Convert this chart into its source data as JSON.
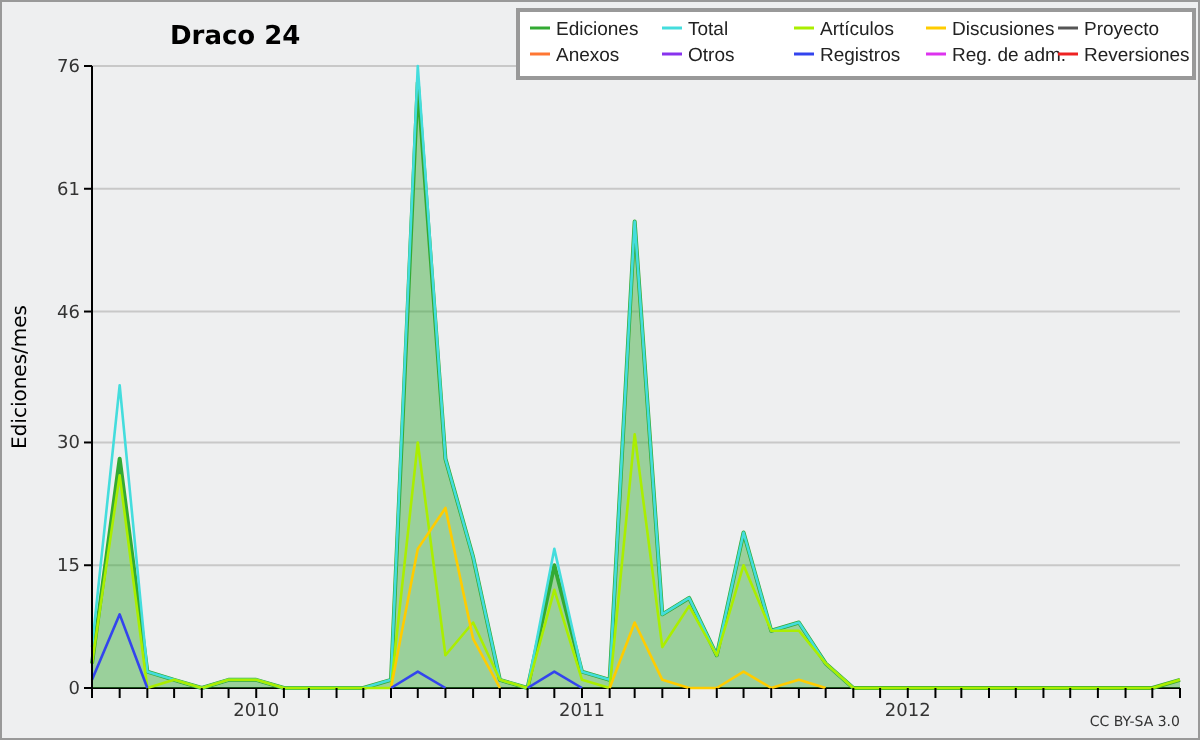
{
  "chart_data": {
    "type": "line",
    "title": "Draco 24",
    "ylabel": "Ediciones/mes",
    "annotations": [
      "CC BY-SA 3.0"
    ],
    "x": [
      "2009-07",
      "2009-08",
      "2009-09",
      "2009-10",
      "2009-11",
      "2009-12",
      "2010-01",
      "2010-02",
      "2010-03",
      "2010-04",
      "2010-05",
      "2010-06",
      "2010-07",
      "2010-08",
      "2010-09",
      "2010-10",
      "2010-11",
      "2010-12",
      "2011-01",
      "2011-02",
      "2011-03",
      "2011-04",
      "2011-05",
      "2011-06",
      "2011-07",
      "2011-08",
      "2011-09",
      "2011-10",
      "2011-11",
      "2011-12",
      "2012-01",
      "2012-02",
      "2012-03",
      "2012-04",
      "2012-05",
      "2012-06",
      "2012-07",
      "2012-08",
      "2012-09",
      "2012-10",
      "2012-11"
    ],
    "series": [
      {
        "name": "Ediciones",
        "type": "area",
        "color": "#33aa33",
        "values": [
          3,
          28,
          2,
          1,
          0,
          1,
          1,
          0,
          0,
          0,
          0,
          1,
          74,
          28,
          16,
          1,
          0,
          15,
          2,
          1,
          57,
          9,
          11,
          4,
          19,
          7,
          8,
          3,
          0,
          0,
          0,
          0,
          0,
          0,
          0,
          0,
          0,
          0,
          0,
          0,
          1
        ]
      },
      {
        "name": "Total",
        "color": "#44dddd",
        "values": [
          5,
          37,
          2,
          1,
          0,
          1,
          1,
          0,
          0,
          0,
          0,
          1,
          76,
          28,
          16,
          1,
          0,
          17,
          2,
          1,
          57,
          9,
          11,
          4,
          19,
          7,
          8,
          3,
          0,
          null,
          null,
          null,
          null,
          null,
          null,
          null,
          null,
          null,
          null,
          null,
          null
        ]
      },
      {
        "name": "Artículos",
        "color": "#aaee00",
        "values": [
          3,
          26,
          0,
          1,
          0,
          1,
          1,
          0,
          0,
          0,
          0,
          0,
          30,
          4,
          8,
          1,
          0,
          12,
          1,
          0,
          31,
          5,
          10,
          4,
          15,
          7,
          7,
          3,
          0,
          0,
          0,
          0,
          0,
          0,
          0,
          0,
          0,
          0,
          0,
          0,
          1
        ]
      },
      {
        "name": "Discusiones",
        "color": "#ffcc00",
        "values": [
          null,
          null,
          null,
          null,
          null,
          null,
          null,
          null,
          null,
          null,
          null,
          0,
          17,
          22,
          6,
          0,
          null,
          null,
          null,
          0,
          8,
          1,
          0,
          0,
          2,
          0,
          1,
          0,
          null,
          null,
          null,
          null,
          null,
          null,
          null,
          null,
          null,
          null,
          null,
          null,
          null
        ]
      },
      {
        "name": "Proyecto",
        "color": "#555555",
        "values": [
          null,
          null,
          null,
          null,
          null,
          null,
          null,
          null,
          null,
          null,
          null,
          null,
          null,
          null,
          null,
          null,
          null,
          null,
          null,
          null,
          null,
          null,
          null,
          null,
          null,
          null,
          null,
          null,
          null,
          null,
          null,
          null,
          null,
          null,
          null,
          null,
          null,
          null,
          null,
          null,
          null
        ]
      },
      {
        "name": "Anexos",
        "color": "#ff7733",
        "values": [
          null,
          null,
          null,
          null,
          null,
          null,
          null,
          null,
          null,
          null,
          null,
          null,
          null,
          null,
          null,
          null,
          null,
          null,
          null,
          null,
          null,
          null,
          null,
          null,
          null,
          null,
          null,
          null,
          null,
          null,
          null,
          null,
          null,
          null,
          null,
          null,
          null,
          null,
          null,
          null,
          null
        ]
      },
      {
        "name": "Otros",
        "color": "#8833ee",
        "values": [
          null,
          null,
          null,
          null,
          null,
          null,
          null,
          null,
          null,
          null,
          null,
          null,
          null,
          null,
          null,
          null,
          null,
          null,
          null,
          null,
          null,
          null,
          null,
          null,
          null,
          null,
          null,
          null,
          null,
          null,
          null,
          null,
          null,
          null,
          null,
          null,
          null,
          null,
          null,
          null,
          null
        ]
      },
      {
        "name": "Registros",
        "color": "#3344ee",
        "values": [
          1,
          9,
          0,
          null,
          null,
          null,
          null,
          null,
          null,
          null,
          null,
          0,
          2,
          0,
          null,
          null,
          0,
          2,
          0,
          null,
          null,
          null,
          null,
          null,
          null,
          null,
          null,
          null,
          null,
          null,
          null,
          null,
          null,
          null,
          null,
          null,
          null,
          null,
          null,
          null,
          null
        ]
      },
      {
        "name": "Reg. de adm.",
        "color": "#dd33ee",
        "values": [
          null,
          null,
          null,
          null,
          null,
          null,
          null,
          null,
          null,
          null,
          null,
          null,
          null,
          null,
          null,
          null,
          null,
          null,
          null,
          null,
          null,
          null,
          null,
          null,
          null,
          null,
          null,
          null,
          null,
          null,
          null,
          null,
          null,
          null,
          null,
          null,
          null,
          null,
          null,
          null,
          null
        ]
      },
      {
        "name": "Reversiones",
        "color": "#ee2222",
        "values": [
          null,
          null,
          null,
          null,
          null,
          null,
          null,
          null,
          null,
          null,
          null,
          null,
          null,
          null,
          null,
          null,
          null,
          null,
          null,
          null,
          null,
          null,
          null,
          null,
          null,
          null,
          null,
          null,
          null,
          null,
          null,
          null,
          null,
          null,
          null,
          null,
          null,
          null,
          null,
          null,
          null
        ]
      }
    ],
    "ylim": [
      0,
      76
    ],
    "yticks": [
      0,
      15,
      30,
      46,
      61,
      76
    ],
    "grid": "y",
    "legend": "top right",
    "marker": "none",
    "line_style": "solid",
    "xlim": [
      "2009-07",
      "2012-11"
    ],
    "xticks": [
      {
        "value": "2009-07",
        "label": null
      },
      {
        "value": "2009-08",
        "label": null
      },
      {
        "value": "2009-09",
        "label": null
      },
      {
        "value": "2009-10",
        "label": null
      },
      {
        "value": "2009-11",
        "label": null
      },
      {
        "value": "2009-12",
        "label": null
      },
      {
        "value": "2010",
        "label": "2010"
      },
      {
        "value": "2010-02",
        "label": null
      },
      {
        "value": "2010-03",
        "label": null
      },
      {
        "value": "2010-04",
        "label": null
      },
      {
        "value": "2010-05",
        "label": null
      },
      {
        "value": "2010-06",
        "label": null
      },
      {
        "value": "2010-07",
        "label": null
      },
      {
        "value": "2010-08",
        "label": null
      },
      {
        "value": "2010-09",
        "label": null
      },
      {
        "value": "2010-10",
        "label": null
      },
      {
        "value": "2010-11",
        "label": null
      },
      {
        "value": "2010-12",
        "label": null
      },
      {
        "value": "2011",
        "label": "2011"
      },
      {
        "value": "2011-02",
        "label": null
      },
      {
        "value": "2011-03",
        "label": null
      },
      {
        "value": "2011-04",
        "label": null
      },
      {
        "value": "2011-05",
        "label": null
      },
      {
        "value": "2011-06",
        "label": null
      },
      {
        "value": "2011-07",
        "label": null
      },
      {
        "value": "2011-08",
        "label": null
      },
      {
        "value": "2011-09",
        "label": null
      },
      {
        "value": "2011-10",
        "label": null
      },
      {
        "value": "2011-11",
        "label": null
      },
      {
        "value": "2011-12",
        "label": null
      },
      {
        "value": "2012",
        "label": "2012"
      },
      {
        "value": "2012-02",
        "label": null
      },
      {
        "value": "2012-03",
        "label": null
      },
      {
        "value": "2012-04",
        "label": null
      },
      {
        "value": "2012-05",
        "label": null
      },
      {
        "value": "2012-06",
        "label": null
      },
      {
        "value": "2012-07",
        "label": null
      },
      {
        "value": "2012-08",
        "label": null
      },
      {
        "value": "2012-09",
        "label": null
      },
      {
        "value": "2012-10",
        "label": null
      },
      {
        "value": "2012-11",
        "label": null
      }
    ]
  }
}
